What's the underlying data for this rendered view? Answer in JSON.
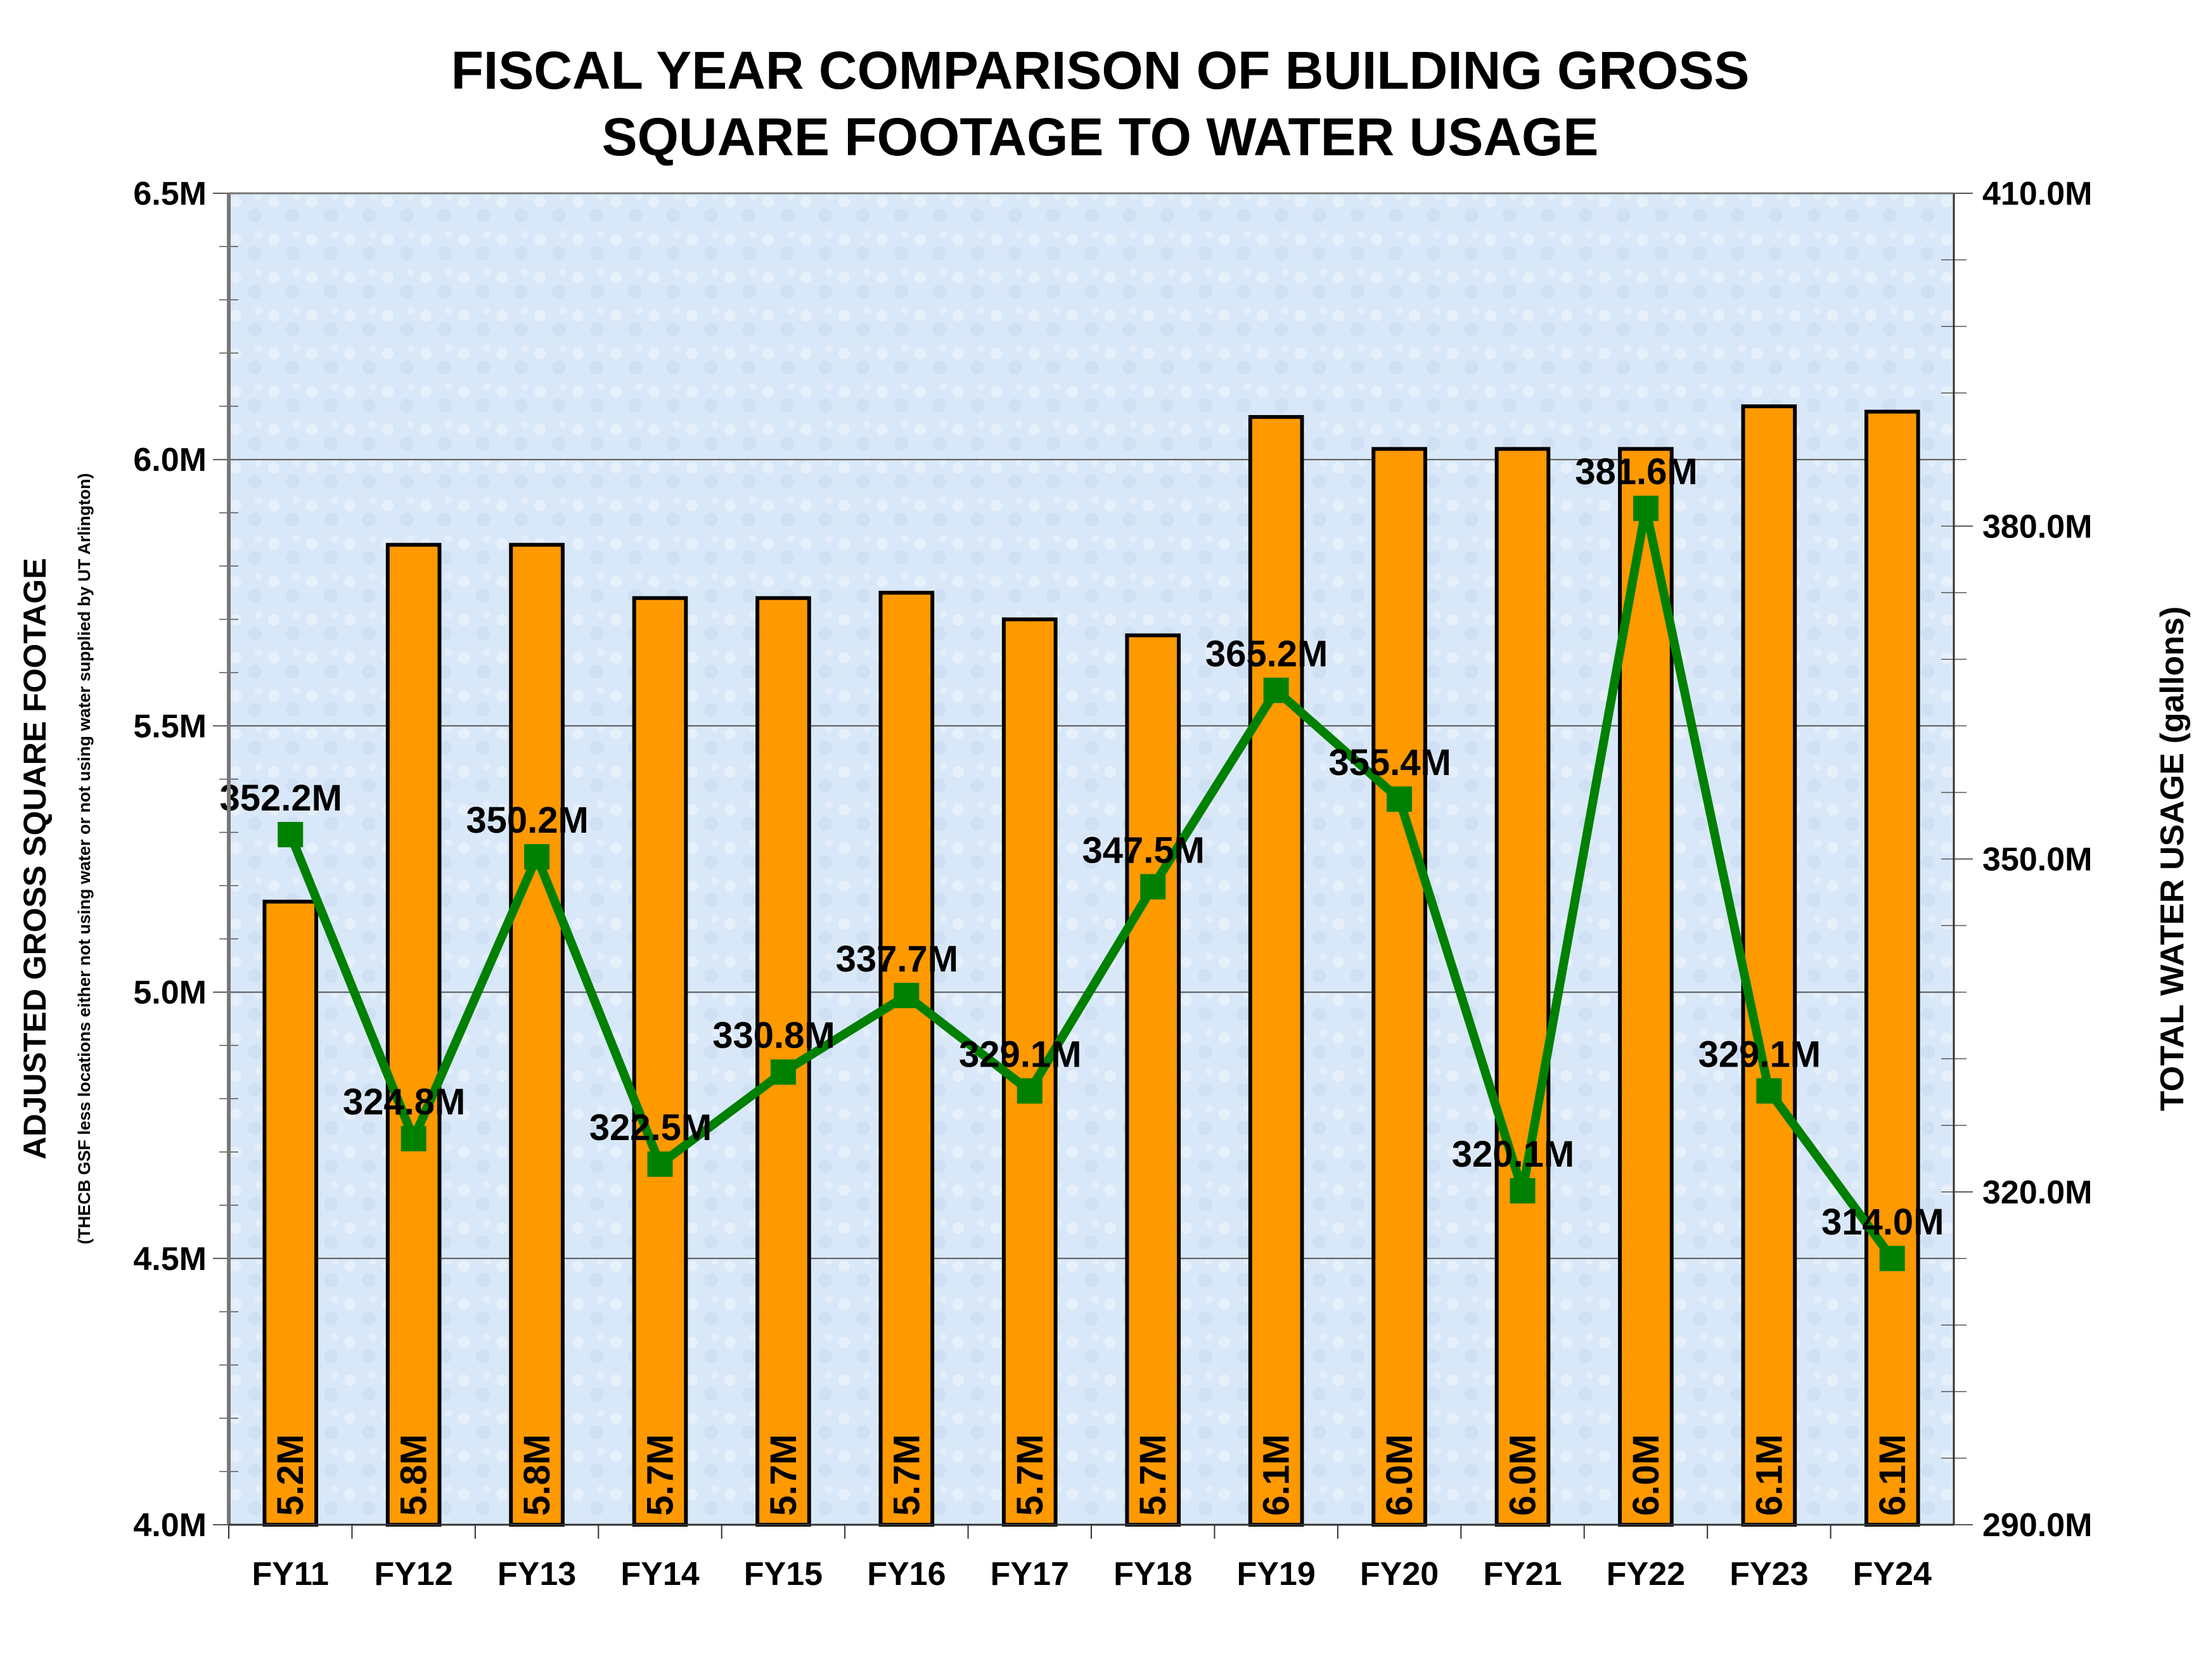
{
  "chart_data": {
    "type": "bar+line",
    "title": [
      "FISCAL YEAR COMPARISON OF BUILDING GROSS",
      "SQUARE FOOTAGE TO WATER USAGE"
    ],
    "ylabel_left": "ADJUSTED GROSS SQUARE FOOTAGE",
    "ylabel_left_sub": "(THECB GSF less locations either not using water or not using water supplied by UT Arlington)",
    "ylabel_right": "TOTAL WATER USAGE (gallons)",
    "categories": [
      "FY11",
      "FY12",
      "FY13",
      "FY14",
      "FY15",
      "FY16",
      "FY17",
      "FY18",
      "FY19",
      "FY20",
      "FY21",
      "FY22",
      "FY23",
      "FY24"
    ],
    "left_axis": {
      "range": [
        4.0,
        6.5
      ],
      "ticks": [
        4.0,
        4.5,
        5.0,
        5.5,
        6.0,
        6.5
      ],
      "tick_labels": [
        "4.0M",
        "4.5M",
        "5.0M",
        "5.5M",
        "6.0M",
        "6.5M"
      ]
    },
    "right_axis": {
      "range": [
        290,
        410
      ],
      "ticks": [
        290,
        320,
        350,
        380,
        410
      ],
      "tick_labels": [
        "290.0M",
        "320.0M",
        "350.0M",
        "380.0M",
        "410.0M"
      ]
    },
    "grid": true,
    "series": [
      {
        "type": "bar",
        "axis": "left",
        "color": "#ff9900",
        "values": [
          5.17,
          5.84,
          5.84,
          5.74,
          5.74,
          5.75,
          5.7,
          5.67,
          6.08,
          6.02,
          6.02,
          6.02,
          6.1,
          6.09
        ],
        "labels": [
          "5.2M",
          "5.8M",
          "5.8M",
          "5.7M",
          "5.7M",
          "5.7M",
          "5.7M",
          "5.7M",
          "6.1M",
          "6.0M",
          "6.0M",
          "6.0M",
          "6.1M",
          "6.1M"
        ]
      },
      {
        "type": "line",
        "axis": "right",
        "color": "#008000",
        "values": [
          352.2,
          324.8,
          350.2,
          322.5,
          330.8,
          337.7,
          329.1,
          347.5,
          365.2,
          355.4,
          320.1,
          381.6,
          329.1,
          314.0
        ],
        "labels": [
          "352.2M",
          "324.8M",
          "350.2M",
          "322.5M",
          "330.8M",
          "337.7M",
          "329.1M",
          "347.5M",
          "365.2M",
          "355.4M",
          "320.1M",
          "381.6M",
          "329.1M",
          "314.0M"
        ]
      }
    ],
    "colors": {
      "plot_background": "#d9e8f8",
      "bar": "#ff9900",
      "line": "#008000"
    }
  }
}
